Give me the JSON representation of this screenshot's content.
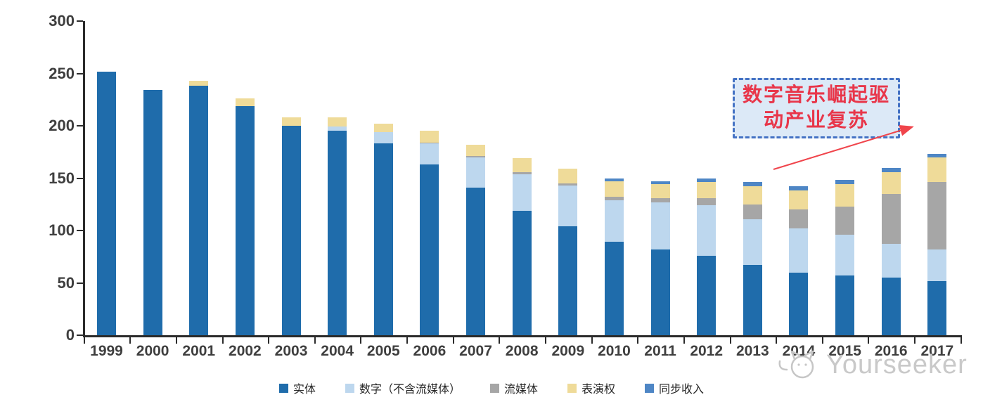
{
  "chart_data": {
    "type": "bar",
    "stacked": true,
    "title": "",
    "xlabel": "",
    "ylabel": "",
    "categories": [
      "1999",
      "2000",
      "2001",
      "2002",
      "2003",
      "2004",
      "2005",
      "2006",
      "2007",
      "2008",
      "2009",
      "2010",
      "2011",
      "2012",
      "2013",
      "2014",
      "2015",
      "2016",
      "2017"
    ],
    "series": [
      {
        "name": "实体",
        "color": "#1F6CAB",
        "values": [
          252,
          234,
          238,
          219,
          200,
          195,
          183,
          163,
          141,
          119,
          104,
          89,
          82,
          76,
          67,
          60,
          57,
          55,
          52
        ]
      },
      {
        "name": "数字（不含流媒体）",
        "color": "#BDD7EE",
        "values": [
          0,
          0,
          0,
          0,
          0,
          4,
          11,
          20,
          29,
          35,
          39,
          40,
          45,
          48,
          44,
          42,
          39,
          32,
          30
        ]
      },
      {
        "name": "流媒体",
        "color": "#A6A6A6",
        "values": [
          0,
          0,
          0,
          0,
          0,
          0,
          0,
          1,
          1,
          2,
          2,
          3,
          4,
          7,
          14,
          18,
          27,
          48,
          64
        ]
      },
      {
        "name": "表演权",
        "color": "#EFDB99",
        "values": [
          0,
          0,
          5,
          7,
          8,
          9,
          8,
          11,
          11,
          13,
          14,
          15,
          13,
          15,
          17,
          18,
          21,
          21,
          24
        ]
      },
      {
        "name": "同步收入",
        "color": "#4E86C5",
        "values": [
          0,
          0,
          0,
          0,
          0,
          0,
          0,
          0,
          0,
          0,
          0,
          3,
          3,
          4,
          4,
          4,
          4,
          4,
          3
        ]
      }
    ],
    "ylim": [
      0,
      300
    ],
    "yticks": [
      0,
      50,
      100,
      150,
      200,
      250,
      300
    ],
    "grid": false,
    "legend_position": "bottom"
  },
  "annotation": {
    "lines": [
      "数字音乐崛起驱",
      "动产业复苏"
    ],
    "box_fill": "#DCE9F7",
    "border_color": "#4472C4",
    "text_color": "#E8364A",
    "arrow_color": "#F0444B"
  },
  "watermark": {
    "text": "Yourseeker",
    "color": "#C9C9C9"
  },
  "axis": {
    "color": "#2B2B2B",
    "label_color": "#3F3F3F"
  }
}
